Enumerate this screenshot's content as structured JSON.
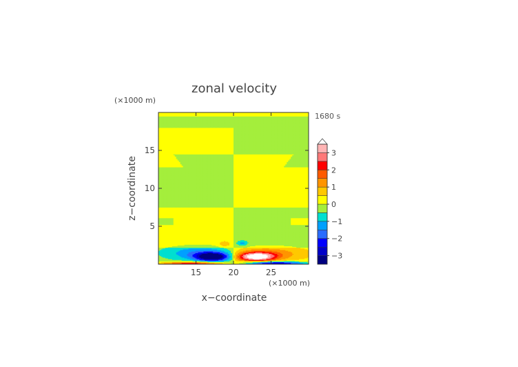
{
  "chart_data": {
    "type": "heatmap",
    "title": "zonal velocity",
    "xlabel": "x−coordinate",
    "ylabel": "z−coordinate",
    "x_unit": "(×1000 m)",
    "y_unit": "(×1000 m)",
    "time_label": "1680 s",
    "xlim": [
      10,
      30
    ],
    "ylim": [
      0,
      20
    ],
    "x_ticks": [
      15,
      20,
      25
    ],
    "x_tick_labels": [
      "15",
      "20",
      "25"
    ],
    "y_ticks": [
      5,
      10,
      15
    ],
    "y_tick_labels": [
      "5",
      "10",
      "15"
    ],
    "grid": false,
    "colorbar": {
      "levels": [
        {
          "min": -3.5,
          "max": -3.0,
          "color": "#000080"
        },
        {
          "min": -3.0,
          "max": -2.5,
          "color": "#0000c8"
        },
        {
          "min": -2.5,
          "max": -2.0,
          "color": "#0000ff"
        },
        {
          "min": -2.0,
          "max": -1.5,
          "color": "#2a6cff"
        },
        {
          "min": -1.5,
          "max": -1.0,
          "color": "#00a0ff"
        },
        {
          "min": -1.0,
          "max": -0.5,
          "color": "#00dfd0"
        },
        {
          "min": -0.5,
          "max": 0.0,
          "color": "#a4ee3c"
        },
        {
          "min": 0.0,
          "max": 0.5,
          "color": "#ffff00"
        },
        {
          "min": 0.5,
          "max": 1.0,
          "color": "#ffc800"
        },
        {
          "min": 1.0,
          "max": 1.5,
          "color": "#ff9400"
        },
        {
          "min": 1.5,
          "max": 2.0,
          "color": "#ff5a00"
        },
        {
          "min": 2.0,
          "max": 2.5,
          "color": "#ff0000"
        },
        {
          "min": 2.5,
          "max": 3.0,
          "color": "#ff7878"
        },
        {
          "min": 3.0,
          "max": 3.5,
          "color": "#ffb4b4"
        }
      ],
      "over_color": "#ffffff",
      "ticks": [
        -3,
        -2,
        -1,
        0,
        1,
        2,
        3
      ],
      "tick_labels": [
        "−3",
        "−2",
        "−1",
        "0",
        "1",
        "2",
        "3"
      ]
    },
    "field_description_values": {
      "background_value_band": "0 to 0.5 (yellow) and -0.5 to 0 (green)",
      "upper_layers_z_km": [
        {
          "z_range": [
            19.5,
            20
          ],
          "left": "0 to 0.5",
          "right": "0 to 0.5"
        },
        {
          "z_range": [
            18.0,
            19.5
          ],
          "left": "-0.5 to 0",
          "right": "-0.5 to 0"
        },
        {
          "z_range": [
            14.5,
            18.0
          ],
          "left": "0 to 0.5",
          "right": "-0.5 to 0"
        },
        {
          "z_range": [
            7.5,
            14.5
          ],
          "left": "-0.5 to 0",
          "right": "0 to 0.5"
        },
        {
          "z_range": [
            2.2,
            7.5
          ],
          "left": "0 to 0.5",
          "right": "-0.5 to 0"
        }
      ],
      "lowlevel_jets": [
        {
          "side": "left",
          "x_center": 17,
          "z_center": 1.0,
          "min_value": -3.2
        },
        {
          "side": "right",
          "x_center": 24,
          "z_center": 1.0,
          "max_value": 3.1
        },
        {
          "side": "left-surface",
          "x_center": 15,
          "z_center": 0.1,
          "max_value": 2.5
        },
        {
          "side": "right-surface",
          "x_center": 25,
          "z_center": 0.1,
          "min_value": -3.0
        }
      ]
    }
  }
}
